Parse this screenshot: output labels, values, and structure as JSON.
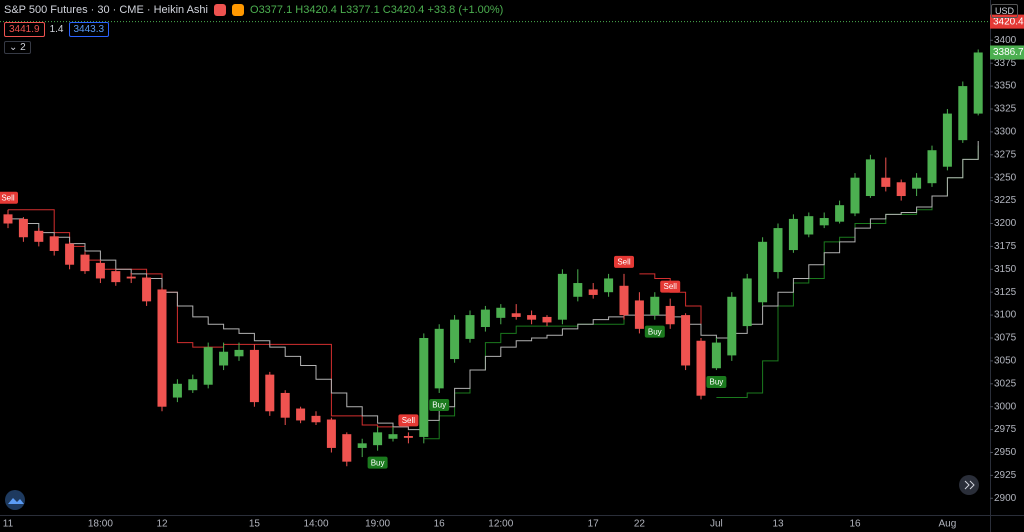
{
  "header": {
    "symbol": "S&P 500 Futures · 30 · CME · Heikin Ashi",
    "ohlc": [
      {
        "label": "O",
        "value": 3377.1
      },
      {
        "label": "H",
        "value": 3420.4
      },
      {
        "label": "L",
        "value": 3377.1
      },
      {
        "label": "C",
        "value": 3420.4
      }
    ],
    "change": "+33.8 (+1.00%)",
    "indicator": [
      3441.9,
      1.4,
      3443.3
    ],
    "collapsed_count": 2,
    "currency": "USD"
  },
  "chart_data": {
    "type": "candlestick",
    "categories": [
      "11",
      null,
      null,
      null,
      null,
      null,
      "18:00",
      null,
      null,
      null,
      "12",
      null,
      null,
      null,
      null,
      null,
      "15",
      null,
      null,
      null,
      "14:00",
      null,
      null,
      null,
      "19:00",
      null,
      null,
      null,
      "16",
      null,
      null,
      null,
      "12:00",
      null,
      null,
      null,
      null,
      null,
      "17",
      null,
      null,
      "22",
      null,
      null,
      null,
      null,
      "Jul",
      null,
      null,
      null,
      "13",
      null,
      null,
      null,
      null,
      "16",
      null,
      null,
      null,
      null,
      null,
      "Aug",
      null,
      null
    ],
    "open": [
      3210,
      3205,
      3192,
      3186,
      3178,
      3166,
      3157,
      3148,
      3142,
      3141,
      3128,
      3010,
      3018,
      3024,
      3045,
      3055,
      3062,
      3035,
      3015,
      2998,
      2990,
      2986,
      2970,
      2955,
      2958,
      2965,
      2968,
      2967,
      3020,
      3052,
      3074,
      3087,
      3097,
      3102,
      3100,
      3098,
      3095,
      3120,
      3128,
      3125,
      3132,
      3116,
      3100,
      3110,
      3100,
      3072,
      3042,
      3056,
      3088,
      3114,
      3147,
      3171,
      3188,
      3198,
      3202,
      3211,
      3230,
      3250,
      3245,
      3238,
      3244,
      3262,
      3291,
      3320
    ],
    "high": [
      3215,
      3207,
      3195,
      3188,
      3180,
      3168,
      3160,
      3150,
      3146,
      3143,
      3130,
      3030,
      3035,
      3070,
      3070,
      3070,
      3068,
      3038,
      3018,
      3000,
      2995,
      2988,
      2972,
      2965,
      2978,
      2978,
      2972,
      3080,
      3090,
      3100,
      3105,
      3110,
      3112,
      3112,
      3105,
      3100,
      3150,
      3150,
      3135,
      3145,
      3145,
      3125,
      3125,
      3118,
      3102,
      3075,
      3075,
      3125,
      3145,
      3185,
      3200,
      3210,
      3212,
      3212,
      3225,
      3255,
      3275,
      3272,
      3248,
      3255,
      3285,
      3325,
      3355,
      3390
    ],
    "low": [
      3195,
      3180,
      3175,
      3165,
      3150,
      3145,
      3135,
      3132,
      3135,
      3110,
      2995,
      3005,
      3015,
      3020,
      3040,
      3050,
      3000,
      2990,
      2980,
      2982,
      2980,
      2950,
      2935,
      2945,
      2952,
      2962,
      2960,
      2960,
      3015,
      3048,
      3070,
      3082,
      3090,
      3095,
      3090,
      3088,
      3090,
      3115,
      3118,
      3120,
      3095,
      3080,
      3095,
      3085,
      3040,
      3008,
      3040,
      3050,
      3085,
      3110,
      3140,
      3168,
      3185,
      3195,
      3200,
      3208,
      3228,
      3235,
      3225,
      3230,
      3240,
      3258,
      3288,
      3318
    ],
    "close": [
      3200,
      3185,
      3180,
      3170,
      3155,
      3148,
      3140,
      3136,
      3140,
      3115,
      3000,
      3025,
      3030,
      3065,
      3060,
      3062,
      3005,
      2995,
      2988,
      2985,
      2983,
      2955,
      2940,
      2960,
      2972,
      2970,
      2966,
      3075,
      3085,
      3095,
      3100,
      3106,
      3108,
      3098,
      3095,
      3092,
      3145,
      3135,
      3122,
      3140,
      3100,
      3085,
      3120,
      3090,
      3045,
      3012,
      3070,
      3120,
      3140,
      3180,
      3195,
      3205,
      3208,
      3206,
      3220,
      3250,
      3270,
      3240,
      3230,
      3250,
      3280,
      3320,
      3350,
      3386.7
    ],
    "up_color": "#4caf50",
    "down_color": "#ef5350",
    "overlays": [
      {
        "color": "#d32f2f",
        "values": [
          3215,
          3215,
          3215,
          3190,
          3175,
          3160,
          3150,
          3150,
          3150,
          3145,
          3125,
          3070,
          3065,
          3065,
          3068,
          3068,
          3068,
          3068,
          3068,
          3068,
          3068,
          2990,
          2990,
          2980,
          2978,
          2978,
          2975,
          null,
          null,
          null,
          null,
          null,
          null,
          null,
          null,
          null,
          null,
          null,
          null,
          null,
          null,
          3145,
          3140,
          3125,
          3110,
          3085,
          null,
          null,
          null,
          null,
          null,
          null,
          null,
          null,
          null,
          null,
          null,
          null,
          null,
          null,
          null,
          null,
          null,
          null
        ]
      },
      {
        "color": "#1b7a1e",
        "values": [
          null,
          null,
          null,
          null,
          null,
          null,
          null,
          null,
          null,
          null,
          null,
          null,
          null,
          null,
          null,
          null,
          null,
          null,
          null,
          null,
          null,
          null,
          null,
          null,
          null,
          null,
          null,
          2965,
          2990,
          3015,
          3040,
          3070,
          3080,
          3088,
          3088,
          3088,
          3088,
          3090,
          3090,
          3090,
          3095,
          null,
          null,
          null,
          null,
          null,
          3010,
          3010,
          3015,
          3050,
          3110,
          3135,
          3140,
          3180,
          3185,
          3200,
          3200,
          3210,
          3210,
          3215,
          3230,
          3250,
          3270,
          3285
        ]
      },
      {
        "color": "#b2b2b2",
        "values": [
          3205,
          3200,
          3190,
          3185,
          3178,
          3170,
          3160,
          3150,
          3145,
          3140,
          3125,
          3110,
          3098,
          3090,
          3085,
          3080,
          3072,
          3065,
          3055,
          3045,
          3030,
          3015,
          3000,
          2990,
          2982,
          2978,
          2975,
          2985,
          3000,
          3020,
          3040,
          3055,
          3065,
          3072,
          3075,
          3078,
          3085,
          3090,
          3095,
          3098,
          3100,
          3100,
          3100,
          3098,
          3090,
          3078,
          3075,
          3080,
          3090,
          3110,
          3125,
          3140,
          3155,
          3168,
          3180,
          3195,
          3205,
          3210,
          3212,
          3218,
          3230,
          3250,
          3270,
          3290
        ]
      }
    ],
    "signals": [
      {
        "index": 0,
        "label": "Sell"
      },
      {
        "index": 24,
        "label": "Buy"
      },
      {
        "index": 26,
        "label": "Sell"
      },
      {
        "index": 28,
        "label": "Buy"
      },
      {
        "index": 40,
        "label": "Sell"
      },
      {
        "index": 42,
        "label": "Buy"
      },
      {
        "index": 43,
        "label": "Sell"
      },
      {
        "index": 46,
        "label": "Buy"
      }
    ],
    "last_price": 3420.4,
    "ylim": [
      2881,
      3444
    ],
    "yticks": [
      2900,
      2925,
      2950,
      2975,
      3000,
      3025,
      3050,
      3075,
      3100,
      3125,
      3150,
      3175,
      3200,
      3225,
      3250,
      3275,
      3300,
      3325,
      3350,
      3375,
      3400
    ],
    "grid": false
  }
}
